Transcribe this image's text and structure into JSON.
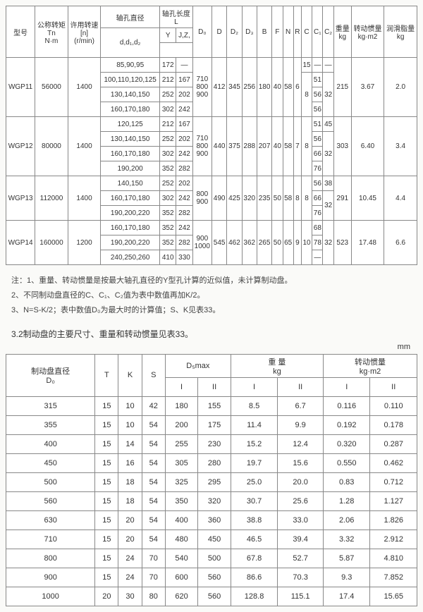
{
  "table1": {
    "headers": {
      "model": "型号",
      "nominal": "公称转矩\nTn\nN·m",
      "allow": "许用转速\n[n]\n(r/min)",
      "shaft_d": "轴孔直径",
      "shaft_l": "轴孔长度\nL",
      "d_sub": "d,d₁,d₂",
      "y": "Y",
      "jz": "J,Z,",
      "Dc": "D₀",
      "D": "D",
      "D2": "D₂",
      "D3": "D₃",
      "B": "B",
      "F": "F",
      "N": "N",
      "R": "R",
      "C": "C",
      "C1": "C₁",
      "C2": "C₂",
      "weight": "重量\nkg",
      "inertia": "转动惯量\nkg·m2",
      "lube": "润滑脂量\nkg"
    },
    "rows": [
      {
        "model": "WGP11",
        "tn": "56000",
        "rpm": "1400",
        "sub": [
          {
            "d": "85,90,95",
            "y": "172",
            "jz": "—",
            "c": "15",
            "c1": "—",
            "c2": "—"
          },
          {
            "d": "100,110,120,125",
            "y": "212",
            "jz": "167",
            "c": "8",
            "c1": "51",
            "c2": "32"
          },
          {
            "d": "130,140,150",
            "y": "252",
            "jz": "202",
            "c1": "56"
          },
          {
            "d": "160,170,180",
            "y": "302",
            "jz": "242",
            "c1": "56"
          }
        ],
        "Dc": "710\n800\n900",
        "D": "412",
        "D2": "345",
        "D3": "256",
        "B": "180",
        "F": "40",
        "N": "58",
        "R": "6",
        "wt": "215",
        "in": "3.67",
        "lu": "2.0"
      },
      {
        "model": "WGP12",
        "tn": "80000",
        "rpm": "1400",
        "sub": [
          {
            "d": "120,125",
            "y": "212",
            "jz": "167",
            "c1": "51",
            "c2": "45"
          },
          {
            "d": "130,140,150",
            "y": "252",
            "jz": "202",
            "c1": "56",
            "c2": "32"
          },
          {
            "d": "160,170,180",
            "y": "302",
            "jz": "242",
            "c1": "66"
          },
          {
            "d": "190,200",
            "y": "352",
            "jz": "282",
            "c1": "76"
          }
        ],
        "Dc": "710\n800\n900",
        "D": "440",
        "D2": "375",
        "D3": "288",
        "B": "207",
        "F": "40",
        "N": "58",
        "R": "7",
        "C": "8",
        "wt": "303",
        "in": "6.40",
        "lu": "3.4"
      },
      {
        "model": "WGP13",
        "tn": "112000",
        "rpm": "1400",
        "sub": [
          {
            "d": "140,150",
            "y": "252",
            "jz": "202",
            "c1": "56",
            "c2": "38"
          },
          {
            "d": "160,170,180",
            "y": "302",
            "jz": "242",
            "c1": "66",
            "c2": "32"
          },
          {
            "d": "190,200,220",
            "y": "352",
            "jz": "282",
            "c1": "76"
          }
        ],
        "Dc": "800\n900",
        "D": "490",
        "D2": "425",
        "D3": "320",
        "B": "235",
        "F": "50",
        "N": "58",
        "R": "8",
        "C": "8",
        "wt": "291",
        "in": "10.45",
        "lu": "4.4"
      },
      {
        "model": "WGP14",
        "tn": "160000",
        "rpm": "1200",
        "sub": [
          {
            "d": "160,170,180",
            "y": "352",
            "jz": "242",
            "c1": "68",
            "c2": "32"
          },
          {
            "d": "190,200,220",
            "y": "352",
            "jz": "282",
            "c1": "78"
          },
          {
            "d": "240,250,260",
            "y": "410",
            "jz": "330",
            "c1": "—"
          }
        ],
        "Dc": "900\n1000",
        "D": "545",
        "D2": "462",
        "D3": "362",
        "B": "265",
        "F": "50",
        "N": "65",
        "R": "9",
        "C": "10",
        "wt": "523",
        "in": "17.48",
        "lu": "6.6"
      }
    ]
  },
  "notes": {
    "n1": "注：1、重量、转动惯量是按最大轴孔直径的Y型孔计算的近似值，未计算制动盘。",
    "n2": "2、不同制动盘直径的C、C₁、C₂值为表中数值再加K/2。",
    "n3": "3、N=S-K/2；表中数值D₀为最大时的计算值；S、K见表33。"
  },
  "section": "3.2制动盘的主要尺寸、重量和转动惯量见表33。",
  "mm": "mm",
  "table2": {
    "headers": {
      "D0": "制动盘直径\nD₀",
      "T": "T",
      "K": "K",
      "S": "S",
      "Dsmax": "D₅max",
      "wt": "重 量\nkg",
      "in": "转动惯量\nkg·m2",
      "I": "I",
      "II": "II"
    },
    "rows": [
      {
        "D0": "315",
        "T": "15",
        "K": "10",
        "S": "42",
        "dI": "180",
        "dII": "155",
        "wI": "8.5",
        "wII": "6.7",
        "iI": "0.116",
        "iII": "0.110"
      },
      {
        "D0": "355",
        "T": "15",
        "K": "10",
        "S": "54",
        "dI": "200",
        "dII": "175",
        "wI": "11.4",
        "wII": "9.9",
        "iI": "0.192",
        "iII": "0.178"
      },
      {
        "D0": "400",
        "T": "15",
        "K": "14",
        "S": "54",
        "dI": "255",
        "dII": "230",
        "wI": "15.2",
        "wII": "12.4",
        "iI": "0.320",
        "iII": "0.287"
      },
      {
        "D0": "450",
        "T": "15",
        "K": "16",
        "S": "54",
        "dI": "305",
        "dII": "280",
        "wI": "19.7",
        "wII": "15.6",
        "iI": "0.550",
        "iII": "0.462"
      },
      {
        "D0": "500",
        "T": "15",
        "K": "18",
        "S": "54",
        "dI": "325",
        "dII": "295",
        "wI": "25.0",
        "wII": "20.0",
        "iI": "0.83",
        "iII": "0.712"
      },
      {
        "D0": "560",
        "T": "15",
        "K": "18",
        "S": "54",
        "dI": "350",
        "dII": "320",
        "wI": "30.7",
        "wII": "25.6",
        "iI": "1.28",
        "iII": "1.127"
      },
      {
        "D0": "630",
        "T": "15",
        "K": "20",
        "S": "54",
        "dI": "400",
        "dII": "360",
        "wI": "38.8",
        "wII": "33.0",
        "iI": "2.06",
        "iII": "1.826"
      },
      {
        "D0": "710",
        "T": "15",
        "K": "20",
        "S": "54",
        "dI": "480",
        "dII": "450",
        "wI": "46.5",
        "wII": "39.4",
        "iI": "3.32",
        "iII": "2.912"
      },
      {
        "D0": "800",
        "T": "15",
        "K": "24",
        "S": "70",
        "dI": "540",
        "dII": "500",
        "wI": "67.8",
        "wII": "52.7",
        "iI": "5.87",
        "iII": "4.810"
      },
      {
        "D0": "900",
        "T": "15",
        "K": "24",
        "S": "70",
        "dI": "600",
        "dII": "560",
        "wI": "86.6",
        "wII": "70.3",
        "iI": "9.3",
        "iII": "7.852"
      },
      {
        "D0": "1000",
        "T": "20",
        "K": "30",
        "S": "80",
        "dI": "620",
        "dII": "560",
        "wI": "128.8",
        "wII": "115.1",
        "iI": "17.4",
        "iII": "15.65"
      }
    ]
  }
}
